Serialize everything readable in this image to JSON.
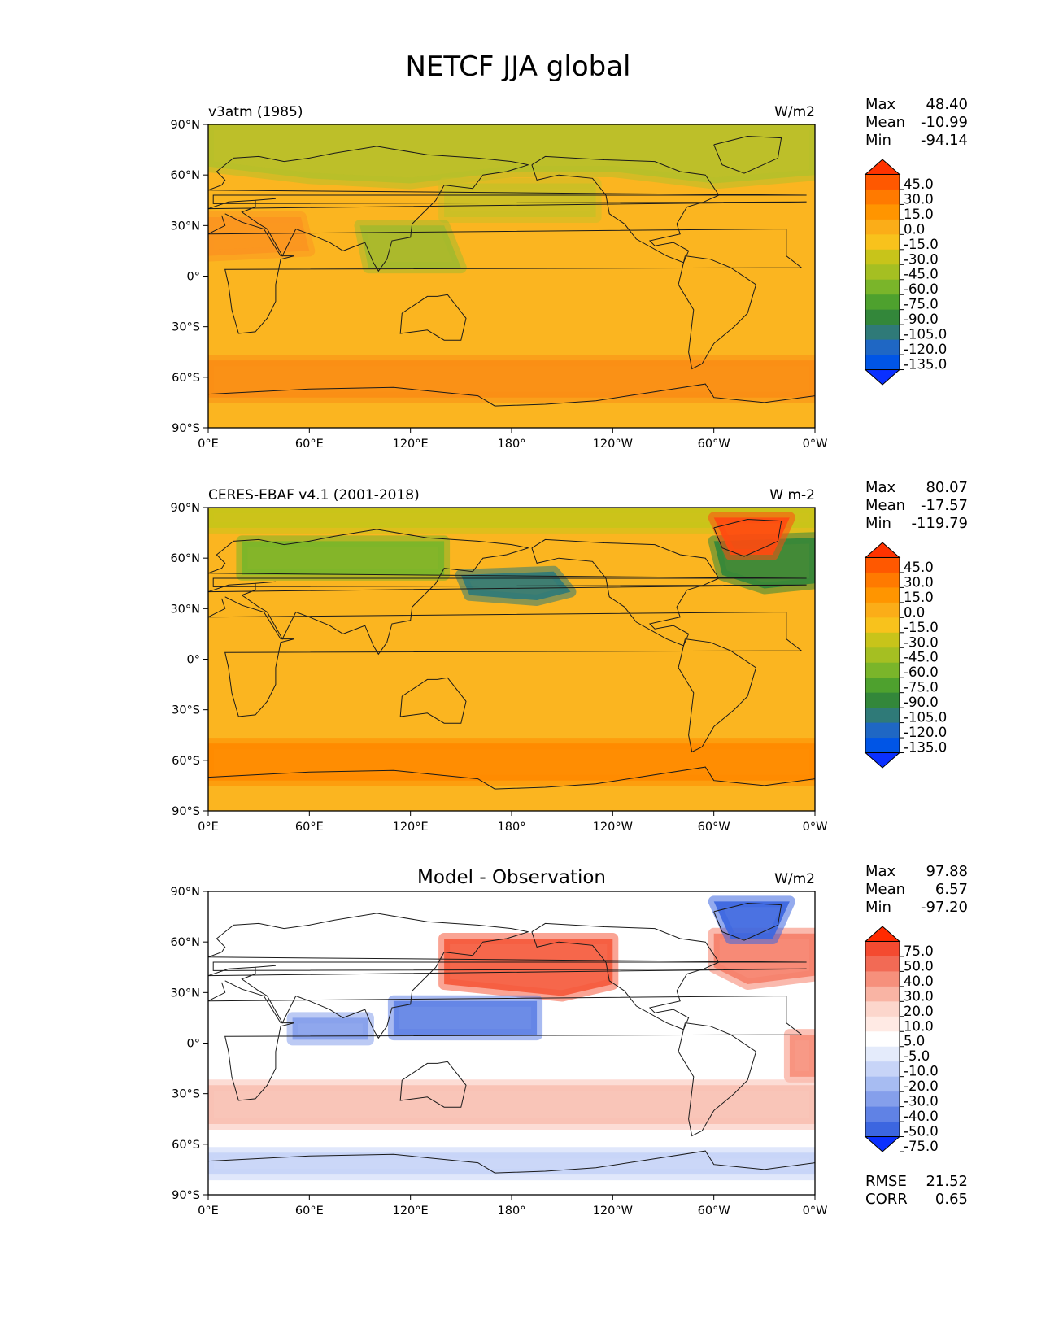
{
  "figure_title": "NETCF JJA global",
  "axes": {
    "lat_ticks": [
      "90°N",
      "60°N",
      "30°N",
      "0°",
      "30°S",
      "60°S",
      "90°S"
    ],
    "lon_ticks": [
      "0°E",
      "60°E",
      "120°E",
      "180°",
      "120°W",
      "60°W",
      "0°W"
    ]
  },
  "panels": [
    {
      "left_title": "v3atm (1985)",
      "center_title": "",
      "right_title": "W/m2",
      "stats": [
        {
          "label": "Max",
          "value": "48.40"
        },
        {
          "label": "Mean",
          "value": "-10.99"
        },
        {
          "label": "Min",
          "value": "-94.14"
        }
      ],
      "colorbar": {
        "levels": [
          "45.0",
          "30.0",
          "15.0",
          "0.0",
          "-15.0",
          "-30.0",
          "-45.0",
          "-60.0",
          "-75.0",
          "-90.0",
          "-105.0",
          "-120.0",
          "-135.0"
        ],
        "colors": [
          "#ff3300",
          "#ff5800",
          "#ff7a00",
          "#ff9500",
          "#fbad18",
          "#f8c21c",
          "#c8c41a",
          "#a5bf22",
          "#7ab52a",
          "#4ea12e",
          "#33873a",
          "#2f7a78",
          "#1f67c4",
          "#0055e6",
          "#0a30ff"
        ]
      },
      "field": {
        "base": "#fbb520",
        "patches": [
          {
            "region": "southern-ocean-band",
            "color": "#fa8e16"
          },
          {
            "region": "arctic-and-boreal-land",
            "color": "#b7c02a"
          },
          {
            "region": "north-pacific-atlantic",
            "color": "#cbc026"
          },
          {
            "region": "tropical-warm-pool",
            "color": "#a4ba2e"
          },
          {
            "region": "sahara-arabia",
            "color": "#fb9520"
          }
        ]
      }
    },
    {
      "left_title": "CERES-EBAF v4.1 (2001-2018)",
      "center_title": "",
      "right_title": "W m-2",
      "stats": [
        {
          "label": "Max",
          "value": "80.07"
        },
        {
          "label": "Mean",
          "value": "-17.57"
        },
        {
          "label": "Min",
          "value": "-119.79"
        }
      ],
      "colorbar": {
        "levels": [
          "45.0",
          "30.0",
          "15.0",
          "0.0",
          "-15.0",
          "-30.0",
          "-45.0",
          "-60.0",
          "-75.0",
          "-90.0",
          "-105.0",
          "-120.0",
          "-135.0"
        ],
        "colors": [
          "#ff3300",
          "#ff5800",
          "#ff7a00",
          "#ff9500",
          "#fbad18",
          "#f8c21c",
          "#c8c41a",
          "#a5bf22",
          "#7ab52a",
          "#4ea12e",
          "#33873a",
          "#2f7a78",
          "#1f67c4",
          "#0055e6",
          "#0a30ff"
        ]
      },
      "field": {
        "base": "#fbb520",
        "patches": [
          {
            "region": "southern-ocean-band",
            "color": "#ff8a00"
          },
          {
            "region": "arctic-cap",
            "color": "#c8c41a"
          },
          {
            "region": "north-pacific-stratus",
            "color": "#2f7a78"
          },
          {
            "region": "north-atlantic-stratus",
            "color": "#33873a"
          },
          {
            "region": "greenland",
            "color": "#ff4a10"
          },
          {
            "region": "boreal-land",
            "color": "#7ab52a"
          }
        ]
      }
    },
    {
      "left_title": "",
      "center_title": "Model - Observation",
      "right_title": "W/m2",
      "stats": [
        {
          "label": "Max",
          "value": "97.88"
        },
        {
          "label": "Mean",
          "value": "6.57"
        },
        {
          "label": "Min",
          "value": "-97.20"
        }
      ],
      "colorbar": {
        "levels": [
          "75.0",
          "50.0",
          "40.0",
          "30.0",
          "20.0",
          "10.0",
          "5.0",
          "-5.0",
          "-10.0",
          "-20.0",
          "-30.0",
          "-40.0",
          "-50.0",
          "-75.0"
        ],
        "colors": [
          "#ff2a00",
          "#f44a30",
          "#f26a55",
          "#f6907c",
          "#f9b4a4",
          "#fcd6cc",
          "#ffeae4",
          "#ffffff",
          "#e4ebfb",
          "#c7d4f7",
          "#a7bcf2",
          "#859feb",
          "#6082e5",
          "#3c66e0",
          "#0a30ff"
        ]
      },
      "field": {
        "base": "#ffffff",
        "patches": [
          {
            "region": "north-pacific",
            "color": "#f55a3c"
          },
          {
            "region": "north-atlantic",
            "color": "#f6806a"
          },
          {
            "region": "tropical-pacific",
            "color": "#6082e5"
          },
          {
            "region": "indian-ocean",
            "color": "#859feb"
          },
          {
            "region": "south-atlantic",
            "color": "#f7907c"
          },
          {
            "region": "southern-ocean",
            "color": "#f9c0b2"
          },
          {
            "region": "greenland",
            "color": "#3c66e0"
          },
          {
            "region": "antarctic-coast",
            "color": "#c7d4f7"
          }
        ]
      }
    }
  ],
  "rmse": {
    "label": "RMSE",
    "value": "21.52"
  },
  "corr": {
    "label": "CORR",
    "value": "0.65"
  }
}
